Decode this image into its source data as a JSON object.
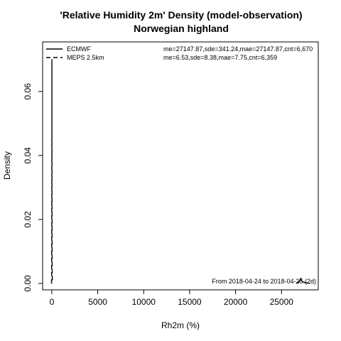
{
  "chart_data": {
    "type": "line",
    "title": "'Relative Humidity 2m' Density (model-observation)",
    "subtitle": "Norwegian highland",
    "xlabel": "Rh2m (%)",
    "ylabel": "Density",
    "xlim": [
      -1000,
      29000
    ],
    "ylim": [
      -0.002,
      0.0755
    ],
    "x_ticks": [
      0,
      5000,
      10000,
      15000,
      20000,
      25000
    ],
    "x_tick_labels": [
      "0",
      "5000",
      "10000",
      "15000",
      "20000",
      "25000"
    ],
    "y_ticks": [
      0.0,
      0.02,
      0.04,
      0.06
    ],
    "y_tick_labels": [
      "0.00",
      "0.02",
      "0.04",
      "0.06"
    ],
    "grid": false,
    "legend_position": "top-left",
    "series": [
      {
        "name": "ECMWF",
        "line_style": "solid",
        "color": "#000000",
        "stats": "me=27147.87,sde=341.24,mae=27147.87,cnt=6,670",
        "x": [
          26600,
          26750,
          26850,
          26950,
          27000,
          27050,
          27100,
          27150,
          27200,
          27300,
          27400,
          27550,
          27700,
          27900,
          28100
        ],
        "y": [
          0.0,
          0.0002,
          0.0004,
          0.0006,
          0.0009,
          0.0013,
          0.0016,
          0.0013,
          0.0008,
          0.0006,
          0.0004,
          0.0003,
          0.0002,
          0.0001,
          0.0
        ]
      },
      {
        "name": "MEPS 2.5km",
        "line_style": "dashed",
        "color": "#000000",
        "stats": "me=6.53,sde=8.38,mae=7.75,cnt=6,359",
        "x": [
          -40,
          -20,
          -10,
          0,
          5,
          8,
          12,
          20,
          30,
          40,
          60,
          80
        ],
        "y": [
          0.0,
          0.002,
          0.01,
          0.03,
          0.05,
          0.07,
          0.05,
          0.03,
          0.012,
          0.004,
          0.001,
          0.0
        ]
      }
    ],
    "annotation": "From 2018-04-24 to 2018-04-25 (2d)"
  }
}
